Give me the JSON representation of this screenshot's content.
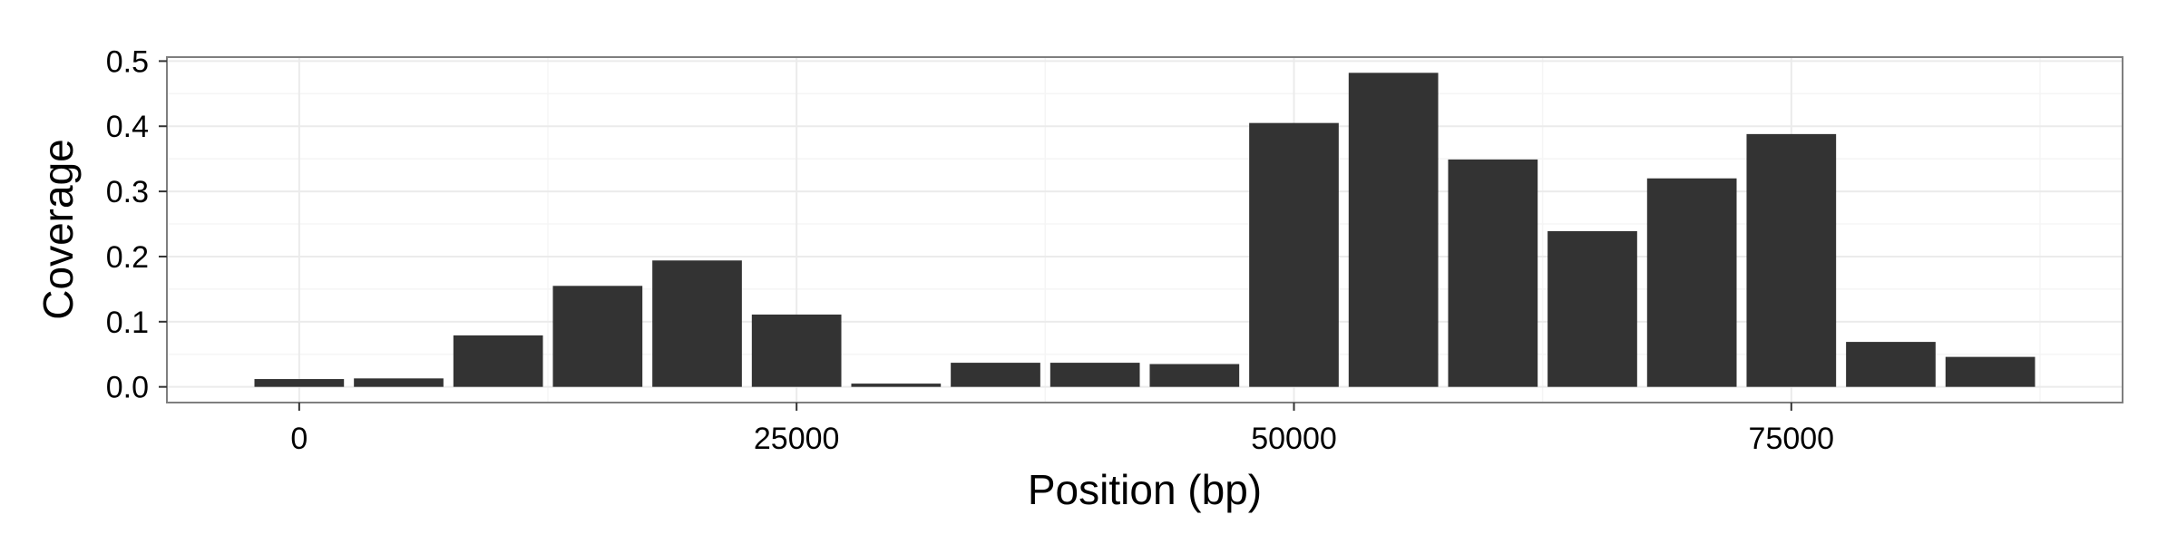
{
  "chart_data": {
    "type": "bar",
    "xlabel": "Position (bp)",
    "ylabel": "Coverage",
    "x": [
      0,
      5000,
      10000,
      15000,
      20000,
      25000,
      30000,
      35000,
      40000,
      45000,
      50000,
      55000,
      60000,
      65000,
      70000,
      75000,
      80000,
      85000
    ],
    "values": [
      0.012,
      0.013,
      0.079,
      0.155,
      0.194,
      0.111,
      0.005,
      0.037,
      0.037,
      0.035,
      0.405,
      0.482,
      0.349,
      0.239,
      0.32,
      0.388,
      0.069,
      0.046
    ],
    "xlim": [
      -6650,
      91650
    ],
    "ylim": [
      -0.0241,
      0.5061
    ],
    "x_ticks": [
      0,
      25000,
      50000,
      75000
    ],
    "x_tick_labels": [
      "0",
      "25000",
      "50000",
      "75000"
    ],
    "y_ticks": [
      0.0,
      0.1,
      0.2,
      0.3,
      0.4,
      0.5
    ],
    "y_tick_labels": [
      "0.0",
      "0.1",
      "0.2",
      "0.3",
      "0.4",
      "0.5"
    ],
    "bar_width": 4500,
    "grid": true,
    "colors": {
      "bar": "#333333",
      "panel_border": "#7f7f7f",
      "grid_major": "#ebebeb",
      "grid_minor": "#f5f5f5",
      "background": "#ffffff"
    }
  }
}
